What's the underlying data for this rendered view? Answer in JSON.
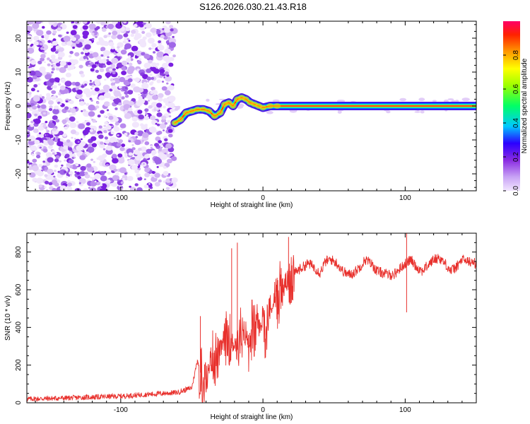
{
  "chart_data": [
    {
      "type": "heatmap",
      "title": "S126.2026.030.21.43.R18",
      "xlabel": "Height of straight line (km)",
      "ylabel": "Frequency (Hz)",
      "xlim": [
        -166,
        150
      ],
      "ylim": [
        -25,
        25
      ],
      "xticks": [
        -100,
        0,
        100
      ],
      "xtick_labels": [
        "-100",
        "0",
        "100"
      ],
      "yticks": [
        -20,
        -10,
        0,
        10,
        20
      ],
      "ytick_labels": [
        "-20",
        "-10",
        "0",
        "10",
        "20"
      ],
      "colorbar": {
        "label": "Normalized spectral amplitude",
        "range": [
          0,
          1
        ],
        "ticks": [
          0.0,
          0.2,
          0.4,
          0.6,
          0.8
        ],
        "tick_labels": [
          "0.0",
          "0.2",
          "0.4",
          "0.6",
          "0.8"
        ]
      },
      "noise_region_x": [
        -166,
        -62
      ],
      "signal_track": {
        "x": [
          -62,
          -58,
          -54,
          -50,
          -46,
          -42,
          -38,
          -34,
          -30,
          -27,
          -24,
          -21,
          -18,
          -15,
          -12,
          -9,
          -6,
          -3,
          0,
          5,
          10,
          15,
          20,
          150
        ],
        "freq": [
          -5,
          -4,
          -2,
          -1.5,
          -1,
          -1,
          -1.5,
          -3,
          -2,
          0.5,
          1,
          0,
          2,
          2.5,
          2,
          1,
          0.5,
          0,
          -0.5,
          0,
          0,
          0,
          0,
          0
        ]
      }
    },
    {
      "type": "line",
      "title": "",
      "xlabel": "Height of straight line (km)",
      "ylabel": "SNR (10 * v/v)",
      "xlim": [
        -166,
        150
      ],
      "ylim": [
        0,
        900
      ],
      "xticks": [
        -100,
        0,
        100
      ],
      "xtick_labels": [
        "-100",
        "0",
        "100"
      ],
      "yticks": [
        0,
        200,
        400,
        600,
        800
      ],
      "ytick_labels": [
        "0",
        "200",
        "400",
        "600",
        "800"
      ],
      "series": [
        {
          "name": "SNR",
          "color": "#e8302c",
          "x": [
            -166,
            -140,
            -120,
            -100,
            -80,
            -60,
            -50,
            -46,
            -44,
            -42,
            -40,
            -36,
            -32,
            -28,
            -24,
            -22,
            -20,
            -18,
            -16,
            -14,
            -12,
            -10,
            -8,
            -6,
            -4,
            -2,
            0,
            2,
            4,
            6,
            8,
            10,
            12,
            14,
            16,
            18,
            20,
            24,
            28,
            32,
            36,
            40,
            44,
            48,
            52,
            56,
            60,
            64,
            68,
            72,
            76,
            80,
            84,
            88,
            92,
            96,
            100,
            104,
            108,
            112,
            116,
            120,
            124,
            128,
            132,
            136,
            140,
            144,
            150
          ],
          "y": [
            20,
            25,
            30,
            35,
            45,
            55,
            80,
            230,
            160,
            120,
            110,
            260,
            230,
            320,
            360,
            300,
            330,
            280,
            360,
            320,
            380,
            300,
            420,
            360,
            450,
            380,
            480,
            420,
            520,
            480,
            600,
            520,
            620,
            580,
            650,
            600,
            680,
            700,
            720,
            740,
            720,
            690,
            750,
            760,
            740,
            700,
            680,
            690,
            720,
            760,
            740,
            700,
            690,
            680,
            680,
            710,
            740,
            760,
            720,
            700,
            730,
            760,
            770,
            740,
            700,
            720,
            760,
            750,
            740
          ]
        }
      ],
      "spikes": [
        {
          "x": -44,
          "y": 460
        },
        {
          "x": -22,
          "y": 820
        },
        {
          "x": -18,
          "y": 850
        },
        {
          "x": 18,
          "y": 880
        },
        {
          "x": 101,
          "y": 900
        },
        {
          "x": 101,
          "y": 480
        }
      ]
    }
  ]
}
